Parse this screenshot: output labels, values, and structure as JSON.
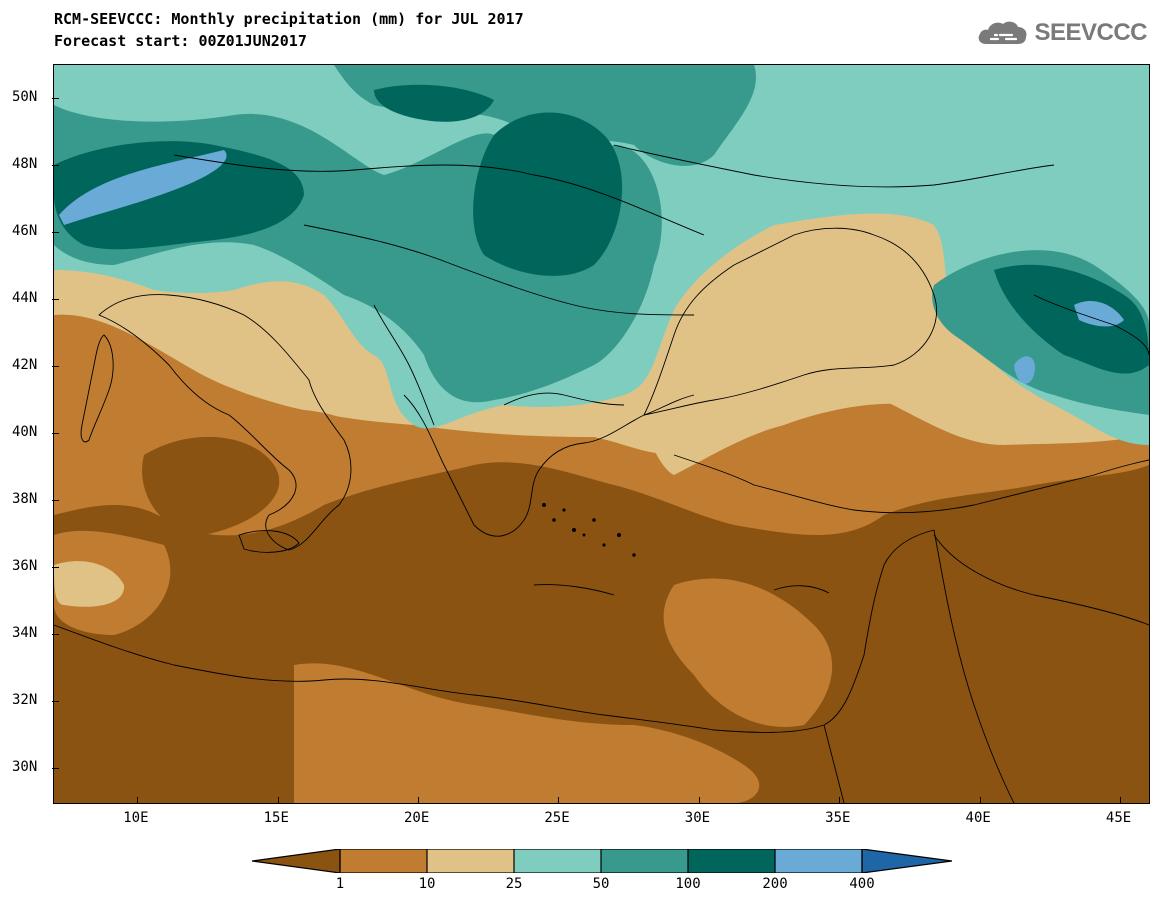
{
  "title": {
    "line1": "RCM-SEEVCCC: Monthly precipitation (mm) for JUL 2017",
    "line2": "Forecast start: 00Z01JUN2017"
  },
  "logo": {
    "text": "SEEVCCC",
    "icon": "cloud-icon"
  },
  "map": {
    "lon_range": [
      7,
      46
    ],
    "lat_range": [
      29,
      51
    ],
    "lat_ticks": [
      "30N",
      "32N",
      "34N",
      "36N",
      "38N",
      "40N",
      "42N",
      "44N",
      "46N",
      "48N",
      "50N"
    ],
    "lon_ticks": [
      "10E",
      "15E",
      "20E",
      "25E",
      "30E",
      "35E",
      "40E",
      "45E"
    ]
  },
  "colorbar": {
    "levels": [
      "1",
      "10",
      "25",
      "50",
      "100",
      "200",
      "400"
    ],
    "colors": [
      "#8b5312",
      "#c07d31",
      "#e0c287",
      "#7ecdbf",
      "#389a8d",
      "#00665c",
      "#6aaad6",
      "#1f66a6"
    ]
  }
}
